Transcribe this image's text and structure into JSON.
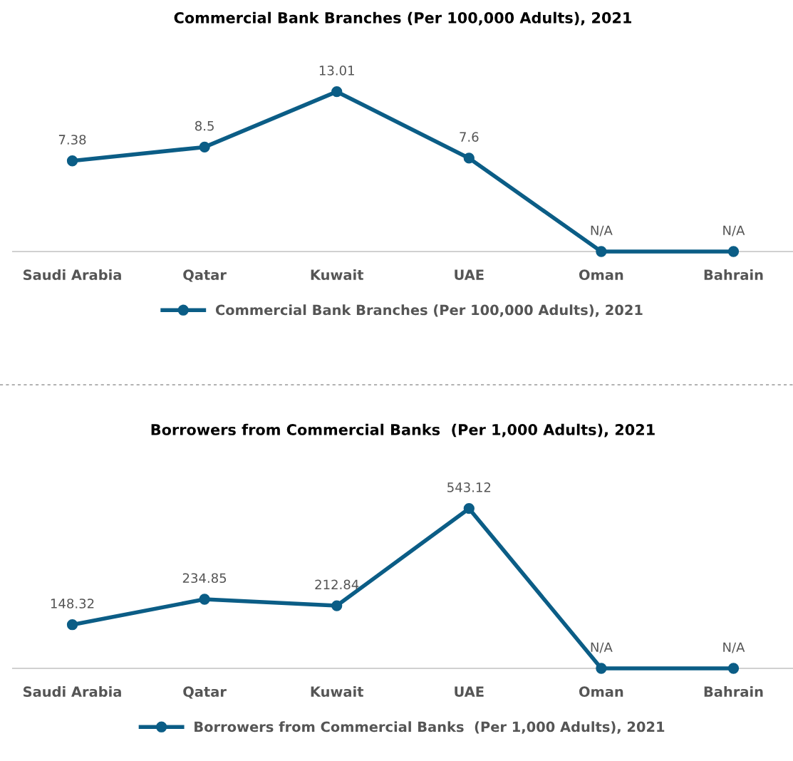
{
  "chart_data": [
    {
      "type": "line",
      "title": "Commercial Bank Branches (Per 100,000 Adults), 2021",
      "categories": [
        "Saudi Arabia",
        "Qatar",
        "Kuwait",
        "UAE",
        "Oman",
        "Bahrain"
      ],
      "series": [
        {
          "name": "Commercial Bank Branches (Per 100,000 Adults), 2021",
          "color": "#0b5d86",
          "values": [
            7.38,
            8.5,
            13.01,
            7.6,
            0,
            0
          ],
          "value_labels": [
            "7.38",
            "8.5",
            "13.01",
            "7.6",
            "N/A",
            "N/A"
          ]
        }
      ],
      "marker": "circle",
      "line_style": "solid",
      "legend": "bottom",
      "grid": false,
      "tick_labels": "x"
    },
    {
      "type": "line",
      "title": "Borrowers from Commercial Banks  (Per 1,000 Adults), 2021",
      "categories": [
        "Saudi Arabia",
        "Qatar",
        "Kuwait",
        "UAE",
        "Oman",
        "Bahrain"
      ],
      "series": [
        {
          "name": "Borrowers from Commercial Banks  (Per 1,000 Adults), 2021",
          "color": "#0b5d86",
          "values": [
            148.32,
            234.85,
            212.84,
            543.12,
            0,
            0
          ],
          "value_labels": [
            "148.32",
            "234.85",
            "212.84",
            "543.12",
            "N/A",
            "N/A"
          ]
        }
      ],
      "marker": "circle",
      "line_style": "solid",
      "legend": "bottom",
      "grid": false,
      "tick_labels": "x"
    }
  ]
}
